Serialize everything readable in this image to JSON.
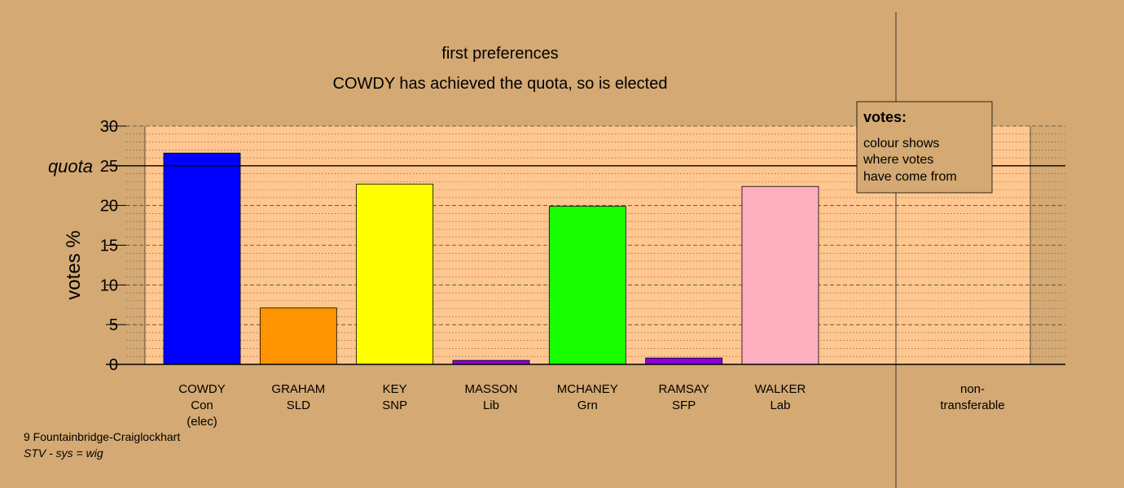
{
  "chart_data": {
    "type": "bar",
    "title": "first preferences",
    "subtitle": "COWDY has achieved the quota, so is elected",
    "ylabel": "votes %",
    "ylim": [
      0,
      30
    ],
    "yticks": [
      "0",
      "5",
      "10",
      "15",
      "20",
      "25",
      "30"
    ],
    "quota_label": "quota",
    "quota_value": 25,
    "categories": [
      [
        "COWDY",
        "Con",
        "(elec)"
      ],
      [
        "GRAHAM",
        "SLD"
      ],
      [
        "KEY",
        "SNP"
      ],
      [
        "MASSON",
        "Lib"
      ],
      [
        "MCHANEY",
        "Grn"
      ],
      [
        "RAMSAY",
        "SFP"
      ],
      [
        "WALKER",
        "Lab"
      ]
    ],
    "values": [
      26.6,
      7.1,
      22.7,
      0.5,
      19.9,
      0.8,
      22.4
    ],
    "colors": [
      "#0000ff",
      "#ff9400",
      "#ffff00",
      "#8e00d8",
      "#1aff00",
      "#8e00d8",
      "#ffb0c0"
    ],
    "nontransferable_label": [
      "non-",
      "transferable"
    ],
    "nontransferable_value": 0,
    "legend": {
      "title": "votes:",
      "lines": [
        "colour shows",
        "where votes",
        "have come from"
      ]
    },
    "grid": "dotted minor, dashed major",
    "legend_placement": "top-right"
  },
  "footer": {
    "ward": "9 Fountainbridge-Craiglockhart",
    "system": "STV - sys = wig"
  }
}
